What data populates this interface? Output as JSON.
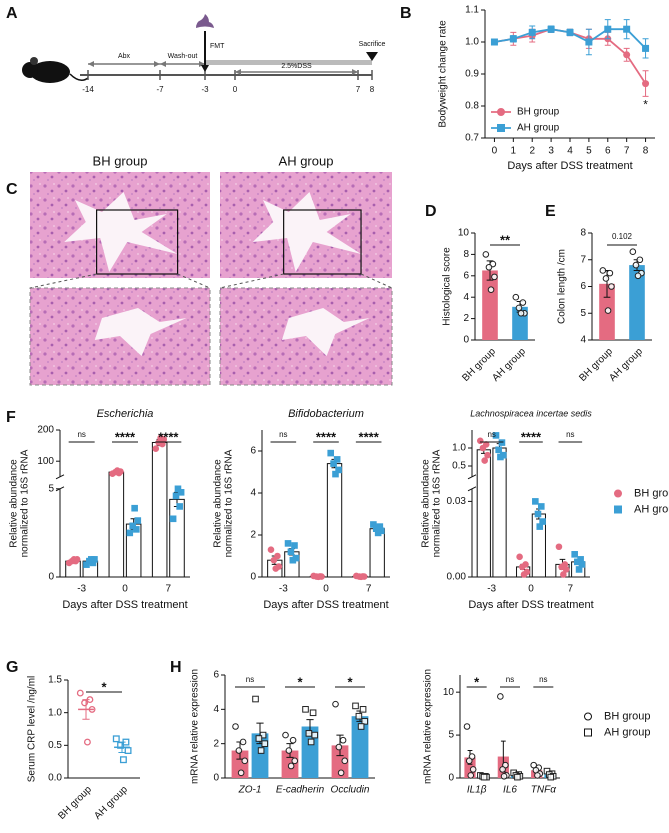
{
  "panel_letters": [
    "A",
    "B",
    "C",
    "D",
    "E",
    "F",
    "G",
    "H"
  ],
  "timeline": {
    "days": [
      "-14",
      "-7",
      "-3",
      "0",
      "7",
      "8"
    ],
    "phases": [
      "Abx",
      "Wash-out",
      "2.5%DSS"
    ],
    "events": [
      "FMT",
      "Sacrifice"
    ]
  },
  "histology": {
    "groups": [
      "BH group",
      "AH group"
    ]
  },
  "chart_data": [
    {
      "type": "line",
      "xlabel": "Days after DSS treatment",
      "ylabel": "Bodyweight change rate",
      "x": [
        0,
        1,
        2,
        3,
        4,
        5,
        6,
        7,
        8
      ],
      "xlim": [
        -0.5,
        8.5
      ],
      "xticks": [
        0,
        1,
        2,
        3,
        4,
        5,
        6,
        7,
        8
      ],
      "ylim": [
        0.7,
        1.1
      ],
      "yticks": [
        0.7,
        0.8,
        0.9,
        {
          "value": 1,
          "label": "1.0"
        },
        1.1
      ],
      "series": [
        {
          "name": "BH group",
          "color": "#e46b81",
          "marker": "circle",
          "values": [
            1.0,
            1.01,
            1.02,
            1.04,
            1.03,
            1.01,
            1.01,
            0.96,
            0.87
          ],
          "errors": [
            0.005,
            0.02,
            0.02,
            0.01,
            0.01,
            0.03,
            0.02,
            0.02,
            0.04
          ]
        },
        {
          "name": "AH group",
          "color": "#3b9fd5",
          "marker": "square",
          "values": [
            1.0,
            1.01,
            1.03,
            1.04,
            1.03,
            1.0,
            1.04,
            1.04,
            0.98
          ],
          "errors": [
            0.005,
            0.01,
            0.02,
            0.01,
            0.01,
            0.04,
            0.03,
            0.03,
            0.03
          ]
        }
      ],
      "annotations": [
        null,
        null,
        null,
        null,
        null,
        null,
        null,
        null,
        "*"
      ],
      "legend": "lower left"
    },
    {
      "type": "bar",
      "ylabel": "Histological score",
      "categories": [
        "BH group",
        "AH group"
      ],
      "colors": [
        "#e46b81",
        "#3b9fd5"
      ],
      "values": [
        6.5,
        3.1
      ],
      "errors": [
        0.9,
        0.5
      ],
      "points": [
        [
          8.0,
          7.1,
          6.8,
          5.9,
          4.7
        ],
        [
          4.0,
          3.5,
          3.0,
          2.5,
          2.5
        ]
      ],
      "ylim": [
        0,
        10
      ],
      "yticks": [
        0,
        2,
        4,
        6,
        8,
        10
      ],
      "annotation": "**",
      "bars_filled": true
    },
    {
      "type": "bar",
      "ylabel": "Colon length /cm",
      "categories": [
        "BH group",
        "AH group"
      ],
      "colors": [
        "#e46b81",
        "#3b9fd5"
      ],
      "values": [
        6.1,
        6.8
      ],
      "errors": [
        0.5,
        0.2
      ],
      "points": [
        [
          6.6,
          6.5,
          6.3,
          6.0,
          5.1
        ],
        [
          7.3,
          7.0,
          6.8,
          6.5,
          6.4
        ]
      ],
      "ylim": [
        4,
        8
      ],
      "yticks": [
        4,
        5,
        6,
        7,
        8
      ],
      "annotation": "0.102",
      "bars_filled": true
    },
    {
      "type": "bar",
      "title": "Escherichia",
      "ylabel": [
        "Relative abundance",
        "normalized to 16S rRNA"
      ],
      "xlabel": "Days after DSS treatment",
      "categories": [
        "-3",
        "0",
        "7"
      ],
      "y_segments": [
        {
          "ylim": [
            0,
            5
          ],
          "yticks": [
            0,
            5
          ]
        },
        {
          "ylim": [
            50,
            200
          ],
          "yticks": [
            100,
            200
          ]
        }
      ],
      "series": [
        {
          "color": "#e46b81",
          "marker": "circle",
          "values": [
            0.9,
            65,
            160
          ],
          "errors": [
            0.1,
            3,
            10
          ],
          "points": [
            [
              0.8,
              0.9,
              0.9,
              1.0,
              1.0
            ],
            [
              60,
              62,
              65,
              67,
              70
            ],
            [
              140,
              155,
              160,
              170,
              175
            ]
          ]
        },
        {
          "color": "#3b9fd5",
          "marker": "square",
          "values": [
            0.9,
            3.0,
            4.4
          ],
          "errors": [
            0.1,
            0.3,
            0.4
          ],
          "points": [
            [
              0.7,
              0.8,
              0.9,
              1.0,
              1.0
            ],
            [
              2.5,
              2.7,
              2.9,
              3.2,
              3.9
            ],
            [
              3.3,
              4.0,
              4.6,
              4.8,
              5.0
            ]
          ]
        }
      ],
      "annotations": [
        "ns",
        "****",
        "****"
      ],
      "bars_filled": false
    },
    {
      "type": "bar",
      "title": "Bifidobacterium",
      "ylabel": [
        "Relative abundance",
        "normalized to 16S rRNA"
      ],
      "xlabel": "Days after DSS treatment",
      "categories": [
        "-3",
        "0",
        "7"
      ],
      "ylim": [
        0,
        7
      ],
      "yticks": [
        0,
        2,
        4,
        6
      ],
      "series": [
        {
          "color": "#e46b81",
          "marker": "circle",
          "values": [
            0.8,
            0.03,
            0.03
          ],
          "errors": [
            0.2,
            0.01,
            0.01
          ],
          "points": [
            [
              1.3,
              1.0,
              0.8,
              0.5,
              0.4
            ],
            [
              0.05,
              0.03,
              0.02,
              0.02,
              0.01
            ],
            [
              0.05,
              0.03,
              0.02,
              0.02,
              0.01
            ]
          ]
        },
        {
          "color": "#3b9fd5",
          "marker": "square",
          "values": [
            1.2,
            5.4,
            2.3
          ],
          "errors": [
            0.15,
            0.2,
            0.08
          ],
          "points": [
            [
              1.6,
              1.5,
              1.2,
              0.9,
              0.8
            ],
            [
              5.9,
              5.6,
              5.4,
              5.1,
              4.9
            ],
            [
              2.5,
              2.4,
              2.3,
              2.2,
              2.1
            ]
          ]
        }
      ],
      "annotations": [
        "ns",
        "****",
        "****"
      ],
      "bars_filled": false
    },
    {
      "type": "bar",
      "title": "Lachnospiracea incertae sedis",
      "ylabel": [
        "Relative abundance",
        "normalized to 16S rRNA"
      ],
      "xlabel": "Days after DSS treatment",
      "categories": [
        "-3",
        "0",
        "7"
      ],
      "y_segments": [
        {
          "ylim": [
            0,
            0.035
          ],
          "yticks": [
            {
              "value": 0,
              "label": "0.00"
            },
            0.03
          ]
        },
        {
          "ylim": [
            0.2,
            1.5
          ],
          "yticks": [
            0.5,
            {
              "value": 1,
              "label": "1.0"
            }
          ]
        }
      ],
      "series": [
        {
          "name": "BH group",
          "color": "#e46b81",
          "marker": "circle",
          "values": [
            0.95,
            0.004,
            0.005
          ],
          "errors": [
            0.1,
            0.001,
            0.002
          ],
          "points": [
            [
              1.2,
              1.1,
              1.0,
              0.8,
              0.65
            ],
            [
              0.008,
              0.005,
              0.004,
              0.002,
              0.001
            ],
            [
              0.012,
              0.005,
              0.004,
              0.003,
              0.001
            ]
          ]
        },
        {
          "name": "AH group",
          "color": "#3b9fd5",
          "marker": "square",
          "values": [
            1.0,
            0.025,
            0.006
          ],
          "errors": [
            0.12,
            0.002,
            0.001
          ],
          "points": [
            [
              1.35,
              1.15,
              0.95,
              0.8,
              0.75
            ],
            [
              0.03,
              0.028,
              0.025,
              0.022,
              0.02
            ],
            [
              0.009,
              0.007,
              0.006,
              0.005,
              0.003
            ]
          ]
        }
      ],
      "annotations": [
        "ns",
        "****",
        "ns"
      ],
      "bars_filled": false,
      "legend": "right"
    },
    {
      "type": "dot",
      "ylabel": "Serum CRP level /ng/ml",
      "categories": [
        "BH group",
        "AH group"
      ],
      "colors": [
        "#e46b81",
        "#3b9fd5"
      ],
      "markers": [
        "circle",
        "square"
      ],
      "values": [
        1.05,
        0.47
      ],
      "errors": [
        0.15,
        0.08
      ],
      "points": [
        [
          1.3,
          1.2,
          1.15,
          1.05,
          0.55
        ],
        [
          0.6,
          0.55,
          0.5,
          0.42,
          0.28
        ]
      ],
      "ylim": [
        0,
        1.5
      ],
      "yticks": [
        {
          "value": 0,
          "label": "0.0"
        },
        0.5,
        {
          "value": 1,
          "label": "1.0"
        },
        1.5
      ],
      "annotation": "*"
    },
    {
      "type": "bar",
      "ylabel": "mRNA relative expression",
      "categories": [
        "ZO-1",
        "E-cadherin",
        "Occludin"
      ],
      "ylim": [
        0,
        6
      ],
      "yticks": [
        0,
        2,
        4,
        6
      ],
      "series": [
        {
          "color": "#e46b81",
          "marker": "circle",
          "values": [
            1.6,
            1.6,
            1.9
          ],
          "errors": [
            0.5,
            0.4,
            0.6
          ],
          "points": [
            [
              3.0,
              2.1,
              1.6,
              1.0,
              0.3
            ],
            [
              2.5,
              2.2,
              1.6,
              1.0,
              0.7
            ],
            [
              4.3,
              2.2,
              1.8,
              1.0,
              0.3
            ]
          ]
        },
        {
          "color": "#3b9fd5",
          "marker": "square",
          "values": [
            2.6,
            3.0,
            3.6
          ],
          "errors": [
            0.6,
            0.4,
            0.3
          ],
          "points": [
            [
              4.6,
              2.5,
              2.3,
              2.0,
              1.6
            ],
            [
              4.0,
              3.8,
              2.6,
              2.5,
              2.1
            ],
            [
              4.2,
              4.0,
              3.6,
              3.3,
              3.0
            ]
          ]
        }
      ],
      "annotations": [
        "ns",
        "*",
        "*"
      ],
      "bars_filled": true
    },
    {
      "type": "bar",
      "ylabel": "mRNA relative expression",
      "categories": [
        "IL1β",
        "IL6",
        "TNFα"
      ],
      "ylim": [
        0,
        12
      ],
      "yticks": [
        0,
        5,
        10
      ],
      "series": [
        {
          "name": "BH group",
          "color": "#e46b81",
          "marker": "circle",
          "values": [
            2.4,
            2.5,
            0.9
          ],
          "errors": [
            0.8,
            1.8,
            0.3
          ],
          "points": [
            [
              6.0,
              2.5,
              2.0,
              1.0,
              0.3
            ],
            [
              9.5,
              1.5,
              1.0,
              0.3,
              0.2
            ],
            [
              1.5,
              1.2,
              0.9,
              0.5,
              0.3
            ]
          ]
        },
        {
          "name": "AH group",
          "color": "#3b9fd5",
          "marker": "square",
          "values": [
            0.2,
            0.3,
            0.4
          ],
          "errors": [
            0.1,
            0.1,
            0.1
          ],
          "points": [
            [
              0.3,
              0.2,
              0.2,
              0.1,
              0.1
            ],
            [
              0.6,
              0.4,
              0.3,
              0.2,
              0.1
            ],
            [
              0.8,
              0.5,
              0.4,
              0.2,
              0.1
            ]
          ]
        }
      ],
      "annotations": [
        "*",
        "ns",
        "ns"
      ],
      "bars_filled": true,
      "legend": "right"
    }
  ]
}
